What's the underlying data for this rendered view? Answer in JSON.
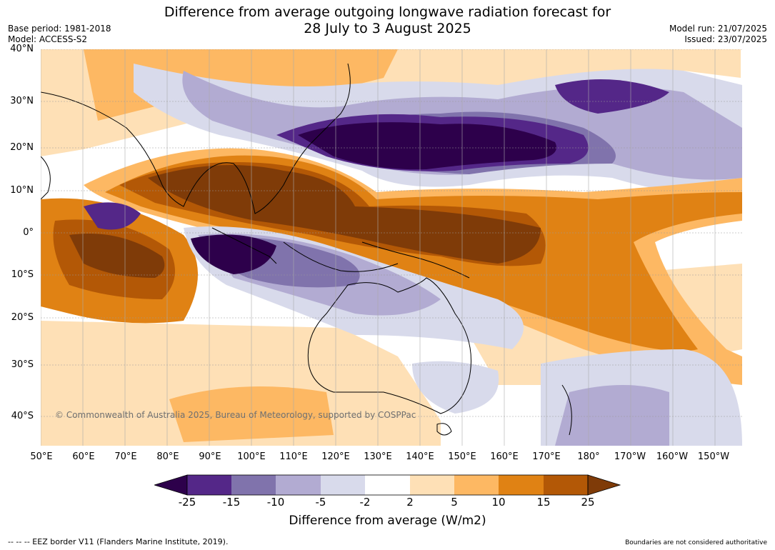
{
  "header": {
    "title_line1": "Difference from average outgoing longwave radiation forecast for",
    "title_line2": "28 July to 3 August 2025",
    "base_period": "Base period: 1981-2018",
    "model": "Model: ACCESS-S2",
    "model_run": "Model run: 21/07/2025",
    "issued": "Issued: 23/07/2025"
  },
  "map": {
    "lat_labels": [
      "40°N",
      "30°N",
      "20°N",
      "10°N",
      "0°",
      "10°S",
      "20°S",
      "30°S",
      "40°S"
    ],
    "lon_labels": [
      "50°E",
      "60°E",
      "70°E",
      "80°E",
      "90°E",
      "100°E",
      "110°E",
      "120°E",
      "130°E",
      "140°E",
      "150°E",
      "160°E",
      "170°E",
      "180°",
      "170°W",
      "160°W",
      "150°W"
    ],
    "copyright": "© Commonwealth of Australia 2025, Bureau of Meteorology, supported by COSPPac"
  },
  "colorbar": {
    "title": "Difference from average (W/m2)",
    "ticks": [
      "-25",
      "-15",
      "-10",
      "-5",
      "-2",
      "2",
      "5",
      "10",
      "15",
      "25"
    ],
    "colors": [
      "#2d004b",
      "#542788",
      "#8073ac",
      "#b2abd2",
      "#d8daeb",
      "#ffffff",
      "#fee0b6",
      "#fdb863",
      "#e08214",
      "#b35806",
      "#7f3b08"
    ]
  },
  "footer": {
    "eez_note": "--  --  -- EEZ border V11 (Flanders Marine Institute, 2019).",
    "boundaries_note": "Boundaries are not considered authoritative"
  }
}
